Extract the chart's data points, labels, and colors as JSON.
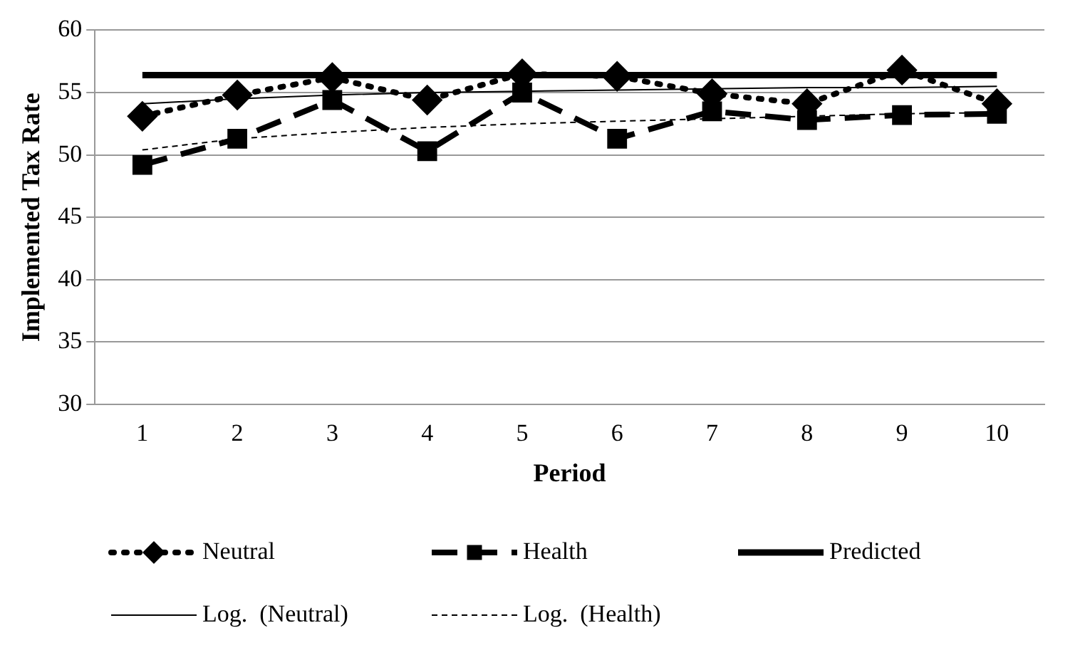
{
  "chart_data": {
    "type": "line",
    "xlabel": "Period",
    "ylabel": "Implemented Tax Rate",
    "categories": [
      "1",
      "2",
      "3",
      "4",
      "5",
      "6",
      "7",
      "8",
      "9",
      "10"
    ],
    "ylim": [
      30,
      60
    ],
    "yticks": [
      30,
      35,
      40,
      45,
      50,
      55,
      60
    ],
    "grid": "y",
    "legend": "bottom",
    "series": [
      {
        "name": "Neutral",
        "color": "#000000",
        "marker": "diamond",
        "line_style": "dotted",
        "values": [
          53.1,
          54.8,
          56.2,
          54.4,
          56.5,
          56.3,
          54.9,
          54.1,
          56.8,
          54.1
        ]
      },
      {
        "name": "Health",
        "color": "#000000",
        "marker": "square",
        "line_style": "dashed",
        "values": [
          49.2,
          51.3,
          54.4,
          50.3,
          55.0,
          51.3,
          53.5,
          52.8,
          53.2,
          53.3
        ]
      },
      {
        "name": "Predicted",
        "color": "#000000",
        "marker": "none",
        "line_style": "solid",
        "values": [
          56.4,
          56.4,
          56.4,
          56.4,
          56.4,
          56.4,
          56.4,
          56.4,
          56.4,
          56.4
        ]
      },
      {
        "name": "Log.  (Neutral)",
        "color": "#000000",
        "marker": "none",
        "line_style": "solid",
        "values": [
          54.1,
          54.5,
          54.8,
          55.0,
          55.1,
          55.2,
          55.3,
          55.4,
          55.4,
          55.5
        ]
      },
      {
        "name": "Log.  (Health)",
        "color": "#000000",
        "marker": "none",
        "line_style": "dashed",
        "values": [
          50.4,
          51.3,
          51.8,
          52.2,
          52.5,
          52.7,
          52.9,
          53.1,
          53.3,
          53.4
        ]
      }
    ]
  }
}
